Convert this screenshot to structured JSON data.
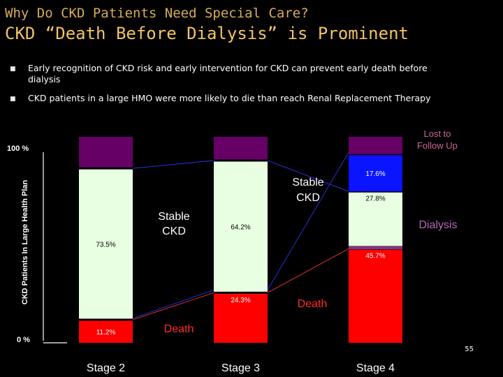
{
  "header": {
    "subtitle": "Why Do CKD Patients Need Special Care?",
    "title": "CKD “Death Before Dialysis” is Prominent"
  },
  "bullets": [
    "Early recognition of CKD risk and early intervention for CKD can prevent early death before dialysis",
    "CKD patients in a large HMO were more likely to die than reach Renal Replacement Therapy"
  ],
  "page_number": "55",
  "colors": {
    "death": "#ff0000",
    "stable": "#e8ffe2",
    "dialysis": "#0a14ff",
    "lost": "#660066",
    "label_text": "#ffffff",
    "lost_label": "#cc6699",
    "dialysis_label": "#b468b4"
  },
  "chart_data": {
    "type": "bar",
    "stacked": true,
    "ylabel": "CKD Patients In Large Health Plan",
    "ylim": [
      0,
      100
    ],
    "y_tick_labels": [
      "0 %",
      "100 %"
    ],
    "categories": [
      "Stage 2",
      "Stage 3",
      "Stage 4"
    ],
    "series": [
      {
        "name": "Death",
        "values": [
          11.2,
          24.3,
          45.7
        ],
        "labels": [
          "11.2%",
          "24.3%",
          "45.7%"
        ]
      },
      {
        "name": "Stable CKD",
        "values": [
          73.5,
          64.2,
          27.8
        ],
        "labels": [
          "73.5%",
          "64.2%",
          "27.8%"
        ]
      },
      {
        "name": "Dialysis",
        "values": [
          0,
          0,
          17.6
        ],
        "labels": [
          "",
          "",
          "17.6%"
        ]
      },
      {
        "name": "Lost to Follow Up",
        "values": [
          15.3,
          11.5,
          8.9
        ],
        "labels": [
          "",
          "",
          ""
        ]
      }
    ],
    "annotations": [
      {
        "text": "Stable CKD",
        "near": "stage-2"
      },
      {
        "text": "Stable CKD",
        "near": "stage-3"
      },
      {
        "text": "Death",
        "near": "stage-2"
      },
      {
        "text": "Death",
        "near": "stage-3"
      },
      {
        "text": "Dialysis",
        "near": "stage-4"
      },
      {
        "text": "Lost to Follow Up",
        "near": "stage-4"
      }
    ]
  }
}
